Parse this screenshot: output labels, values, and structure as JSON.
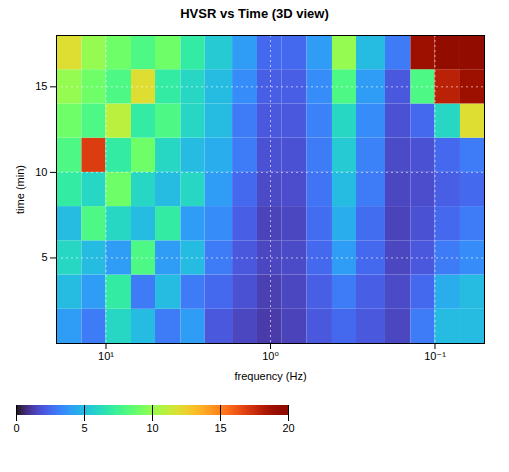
{
  "chart_data": {
    "type": "heatmap",
    "title": "HVSR vs Time (3D view)",
    "x_label": "frequency (Hz)",
    "y_label": "time (min)",
    "log": "x",
    "grid": true,
    "xlim": [
      20,
      0.05
    ],
    "xticks": [
      {
        "value": 10,
        "label": "10¹"
      },
      {
        "value": 1,
        "label": "10⁰"
      },
      {
        "value": 0.1,
        "label": "10⁻¹"
      }
    ],
    "ylim": [
      0,
      18
    ],
    "yticks": [
      5,
      10,
      15
    ],
    "x_bins": [
      20,
      14,
      10,
      7,
      5,
      3.5,
      2.5,
      1.7,
      1.2,
      0.85,
      0.6,
      0.42,
      0.3,
      0.2,
      0.14,
      0.1,
      0.07,
      0.05
    ],
    "y_bins": [
      0,
      2,
      4,
      6,
      8,
      10,
      12,
      14,
      16,
      18
    ],
    "values": [
      [
        4,
        3,
        6,
        5,
        3,
        4,
        2,
        1.5,
        1.2,
        1.4,
        2,
        2.5,
        2,
        1.5,
        3,
        5,
        5
      ],
      [
        5,
        4,
        7,
        3,
        5,
        3,
        2.5,
        1.8,
        1.3,
        1.5,
        2.2,
        3,
        2.2,
        1.6,
        2.5,
        4.5,
        5
      ],
      [
        6,
        5,
        4,
        8,
        4,
        5,
        3,
        2,
        1.5,
        1.6,
        2.5,
        4,
        2.5,
        1.5,
        2,
        3,
        3.5
      ],
      [
        5,
        8,
        6,
        5,
        7,
        4,
        3.5,
        2.2,
        1.4,
        1.5,
        2.6,
        4.5,
        2.6,
        1.4,
        1.8,
        2.5,
        3
      ],
      [
        7,
        6,
        9,
        6,
        5,
        6,
        4,
        2.5,
        1.6,
        1.7,
        2.8,
        5,
        3,
        1.5,
        1.7,
        2.2,
        2.5
      ],
      [
        8,
        17,
        7,
        9,
        6,
        5,
        4.5,
        3,
        1.8,
        1.8,
        3,
        5.5,
        3.2,
        1.6,
        1.8,
        2.5,
        3
      ],
      [
        9,
        8,
        11,
        7,
        8,
        6,
        5,
        3,
        2,
        2,
        3.2,
        6,
        3.5,
        1.8,
        2.5,
        6,
        12
      ],
      [
        10,
        9,
        8,
        12,
        7,
        6,
        5,
        3.5,
        2.2,
        2.2,
        3.5,
        8,
        4,
        2,
        8,
        18,
        19
      ],
      [
        12,
        10,
        9,
        8,
        9,
        7,
        5.5,
        4,
        2.5,
        2.5,
        4,
        10,
        5,
        3,
        19,
        19.5,
        19.5
      ]
    ],
    "zlim": [
      0,
      20
    ],
    "zticks": [
      0,
      5,
      10,
      15,
      20
    ]
  }
}
